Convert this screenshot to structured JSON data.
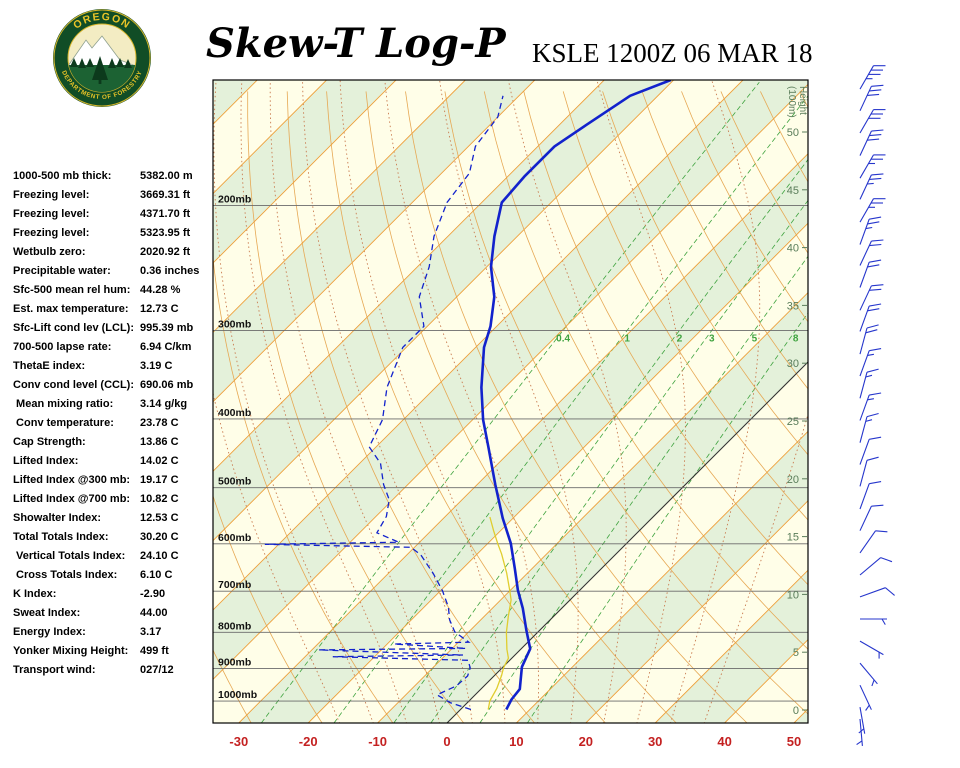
{
  "header": {
    "title": "Skew-T Log-P",
    "station_line": "KSLE 1200Z 06 MAR 18",
    "logo_top": "OREGON",
    "logo_bottom": "DEPARTMENT OF FORESTRY"
  },
  "indices": [
    {
      "label": "1000-500 mb thick:",
      "value": "5382.00 m"
    },
    {
      "label": "Freezing level:",
      "value": "3669.31 ft"
    },
    {
      "label": "Freezing level:",
      "value": "4371.70 ft"
    },
    {
      "label": "Freezing level:",
      "value": "5323.95 ft"
    },
    {
      "label": "Wetbulb zero:",
      "value": "2020.92 ft"
    },
    {
      "label": "Precipitable water:",
      "value": "0.36 inches"
    },
    {
      "label": "Sfc-500 mean rel hum:",
      "value": "44.28 %"
    },
    {
      "label": "Est. max temperature:",
      "value": "12.73 C"
    },
    {
      "label": "Sfc-Lift cond lev (LCL):",
      "value": "995.39 mb"
    },
    {
      "label": "700-500 lapse rate:",
      "value": "6.94 C/km"
    },
    {
      "label": "ThetaE index:",
      "value": "3.19 C"
    },
    {
      "label": "Conv cond level (CCL):",
      "value": "690.06 mb"
    },
    {
      "label": " Mean mixing ratio:",
      "value": "3.14 g/kg"
    },
    {
      "label": " Conv temperature:",
      "value": "23.78 C"
    },
    {
      "label": "Cap Strength:",
      "value": "13.86 C"
    },
    {
      "label": "Lifted Index:",
      "value": "14.02 C"
    },
    {
      "label": "Lifted Index @300 mb:",
      "value": "19.17 C"
    },
    {
      "label": "Lifted Index @700 mb:",
      "value": "10.82 C"
    },
    {
      "label": "Showalter Index:",
      "value": "12.53 C"
    },
    {
      "label": "Total Totals Index:",
      "value": "30.20 C"
    },
    {
      "label": " Vertical Totals Index:",
      "value": "24.10 C"
    },
    {
      "label": " Cross Totals Index:",
      "value": "6.10 C"
    },
    {
      "label": "K Index:",
      "value": "-2.90"
    },
    {
      "label": "Sweat Index:",
      "value": "44.00"
    },
    {
      "label": "Energy Index:",
      "value": "3.17"
    },
    {
      "label": "Yonker Mixing Height:",
      "value": "499 ft"
    },
    {
      "label": "Transport wind:",
      "value": "027/12"
    }
  ],
  "chart_data": {
    "type": "skewt-log-p",
    "title": "Skew-T Log-P",
    "station": "KSLE",
    "valid_time": "1200Z 06 MAR 18",
    "pressure_axis": {
      "levels_mb": [
        200,
        300,
        400,
        500,
        600,
        700,
        800,
        900,
        1000
      ],
      "label_suffix": "mb",
      "top_mb": 133,
      "bottom_mb": 1074
    },
    "temp_axis": {
      "ticks_c": [
        -30,
        -20,
        -10,
        0,
        10,
        20,
        30,
        40,
        50
      ],
      "unit": "C",
      "color": "#c42121"
    },
    "height_axis": {
      "title_line1": "Height",
      "title_line2": "(100m)",
      "ticks": [
        50,
        45,
        40,
        35,
        30,
        25,
        20,
        15,
        10,
        5,
        0
      ]
    },
    "grid": {
      "isotherm_min": -120,
      "isotherm_max": 50,
      "isotherm_step": 10,
      "zero_isotherm_color": "#333333",
      "dry_adiabats_k_min": 220,
      "dry_adiabats_k_max": 460,
      "dry_adiabats_step": 10,
      "moist_adiabats_c": [
        -20,
        -15,
        -10,
        -5,
        0,
        5,
        10,
        15,
        20,
        25,
        30,
        35
      ],
      "mixing_ratio_gkg": [
        0.4,
        1,
        2,
        3,
        5,
        8
      ],
      "mixing_label_at_mb": 300
    },
    "temperature_profile": [
      [
        1028,
        6.6
      ],
      [
        995,
        5.9
      ],
      [
        962,
        5.6
      ],
      [
        895,
        2.7
      ],
      [
        844,
        1.3
      ],
      [
        795,
        -1.9
      ],
      [
        740,
        -5.6
      ],
      [
        698,
        -8.9
      ],
      [
        650,
        -12.5
      ],
      [
        599,
        -16.7
      ],
      [
        552,
        -21.5
      ],
      [
        495,
        -27.4
      ],
      [
        439,
        -33.7
      ],
      [
        401,
        -38.5
      ],
      [
        361,
        -43.4
      ],
      [
        317,
        -48.8
      ],
      [
        296,
        -50.9
      ],
      [
        269,
        -54.6
      ],
      [
        244,
        -59.4
      ],
      [
        221,
        -63.3
      ],
      [
        198,
        -67.1
      ],
      [
        182,
        -67.6
      ],
      [
        165,
        -67.6
      ],
      [
        154,
        -66.1
      ],
      [
        140,
        -64.0
      ],
      [
        133,
        -60.4
      ]
    ],
    "dewpoint_profile": [
      [
        1028,
        1.5
      ],
      [
        1005,
        -2.5
      ],
      [
        980,
        -5.5
      ],
      [
        952,
        -4.0
      ],
      [
        922,
        -3.8
      ],
      [
        898,
        -4.6
      ],
      [
        876,
        -6.0
      ],
      [
        866,
        -26.0
      ],
      [
        861,
        -7.5
      ],
      [
        847,
        -29.0
      ],
      [
        843,
        -8.0
      ],
      [
        831,
        -19.0
      ],
      [
        826,
        -8.5
      ],
      [
        799,
        -12.0
      ],
      [
        768,
        -14.5
      ],
      [
        737,
        -16.5
      ],
      [
        699,
        -19.7
      ],
      [
        661,
        -23.5
      ],
      [
        622,
        -28.0
      ],
      [
        607,
        -30.5
      ],
      [
        601,
        -52.0
      ],
      [
        597,
        -33.0
      ],
      [
        579,
        -37.5
      ],
      [
        549,
        -38.5
      ],
      [
        520,
        -40.5
      ],
      [
        495,
        -43.5
      ],
      [
        462,
        -47.0
      ],
      [
        438,
        -51.0
      ],
      [
        401,
        -53.0
      ],
      [
        361,
        -57.0
      ],
      [
        317,
        -60.5
      ],
      [
        296,
        -60.5
      ],
      [
        269,
        -65.4
      ],
      [
        244,
        -68.3
      ],
      [
        221,
        -72.0
      ],
      [
        198,
        -75.0
      ],
      [
        180,
        -76.0
      ],
      [
        165,
        -79.0
      ],
      [
        150,
        -80.0
      ],
      [
        140,
        -82.3
      ]
    ],
    "wetbulb_profile": [
      [
        1028,
        4.0
      ],
      [
        1000,
        3.0
      ],
      [
        960,
        2.2
      ],
      [
        920,
        1.0
      ],
      [
        898,
        0.2
      ],
      [
        870,
        -0.5
      ],
      [
        845,
        -2.0
      ],
      [
        800,
        -4.5
      ],
      [
        760,
        -6.5
      ],
      [
        720,
        -8.5
      ],
      [
        699,
        -10.0
      ],
      [
        660,
        -13.0
      ],
      [
        620,
        -16.5
      ],
      [
        600,
        -18.5
      ],
      [
        575,
        -21.0
      ],
      [
        550,
        -23.5
      ]
    ],
    "winds": [
      [
        137,
        30,
        35
      ],
      [
        147,
        25,
        30
      ],
      [
        158,
        30,
        30
      ],
      [
        170,
        25,
        30
      ],
      [
        183,
        30,
        25
      ],
      [
        196,
        25,
        25
      ],
      [
        211,
        30,
        25
      ],
      [
        227,
        20,
        25
      ],
      [
        243,
        25,
        20
      ],
      [
        261,
        20,
        20
      ],
      [
        281,
        25,
        20
      ],
      [
        301,
        20,
        20
      ],
      [
        324,
        15,
        20
      ],
      [
        348,
        20,
        15
      ],
      [
        374,
        15,
        15
      ],
      [
        402,
        20,
        15
      ],
      [
        432,
        15,
        15
      ],
      [
        464,
        20,
        10
      ],
      [
        498,
        15,
        10
      ],
      [
        536,
        20,
        10
      ],
      [
        575,
        25,
        10
      ],
      [
        618,
        35,
        10
      ],
      [
        664,
        50,
        10
      ],
      [
        713,
        70,
        10
      ],
      [
        766,
        90,
        5
      ],
      [
        823,
        120,
        5
      ],
      [
        884,
        140,
        5
      ],
      [
        950,
        155,
        5
      ],
      [
        1020,
        170,
        5
      ],
      [
        1060,
        175,
        5
      ]
    ],
    "colors": {
      "temperature": "#1222cc",
      "dewpoint": "#1222cc",
      "wetbulb": "#e0cd2e",
      "isotherm": "#ee9f3a",
      "dry_adiabat": "#e6a854",
      "moist_adiabat": "#c97b4f",
      "mixing": "#3fa33f",
      "band_green": "#e4f1da",
      "band_cream": "#fffee8",
      "pressure_line": "#6a6a6a",
      "wind_barb": "#2636cc",
      "height_text": "#5a7d5a",
      "frame": "#000000"
    }
  }
}
